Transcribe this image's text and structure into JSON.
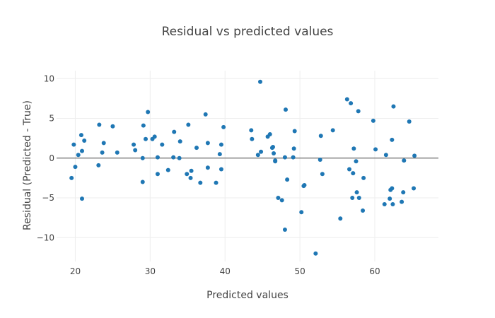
{
  "chart_data": {
    "type": "scatter",
    "title": "Residual vs predicted values",
    "xlabel": "Predicted values",
    "ylabel": "Residual (Predicted - True)",
    "xlim": [
      17.5,
      68.5
    ],
    "ylim": [
      -13.0,
      11.0
    ],
    "xticks": [
      20,
      30,
      40,
      50,
      60
    ],
    "xtick_labels": [
      "20",
      "30",
      "40",
      "50",
      "60"
    ],
    "yticks": [
      -10,
      -5,
      0,
      5,
      10
    ],
    "ytick_labels": [
      "−10",
      "−5",
      "0",
      "5",
      "10"
    ],
    "grid": true,
    "zero_line": true,
    "marker_color": "#1f77b4",
    "points": [
      [
        19.5,
        -2.5
      ],
      [
        19.8,
        1.7
      ],
      [
        20.0,
        -1.1
      ],
      [
        20.4,
        0.4
      ],
      [
        20.8,
        2.9
      ],
      [
        20.9,
        0.9
      ],
      [
        20.9,
        -5.1
      ],
      [
        21.2,
        2.2
      ],
      [
        23.1,
        -0.9
      ],
      [
        23.2,
        4.2
      ],
      [
        23.6,
        0.7
      ],
      [
        23.8,
        1.9
      ],
      [
        25.0,
        4.0
      ],
      [
        25.6,
        0.7
      ],
      [
        27.8,
        1.7
      ],
      [
        28.0,
        1.0
      ],
      [
        29.0,
        0.0
      ],
      [
        29.0,
        -3.0
      ],
      [
        29.1,
        4.1
      ],
      [
        29.4,
        2.4
      ],
      [
        29.7,
        5.8
      ],
      [
        30.3,
        2.4
      ],
      [
        30.6,
        2.7
      ],
      [
        31.0,
        0.1
      ],
      [
        31.0,
        -2.0
      ],
      [
        31.6,
        1.7
      ],
      [
        32.4,
        -1.5
      ],
      [
        33.1,
        0.1
      ],
      [
        33.2,
        3.3
      ],
      [
        33.9,
        0.0
      ],
      [
        34.0,
        2.1
      ],
      [
        34.9,
        -2.0
      ],
      [
        35.1,
        4.2
      ],
      [
        35.4,
        -2.5
      ],
      [
        35.5,
        -1.6
      ],
      [
        36.2,
        1.3
      ],
      [
        36.7,
        -3.1
      ],
      [
        37.4,
        5.5
      ],
      [
        37.7,
        1.9
      ],
      [
        37.7,
        -1.2
      ],
      [
        38.8,
        -3.1
      ],
      [
        39.3,
        0.5
      ],
      [
        39.5,
        -1.4
      ],
      [
        39.5,
        1.7
      ],
      [
        39.8,
        3.9
      ],
      [
        43.5,
        3.5
      ],
      [
        43.6,
        2.4
      ],
      [
        44.4,
        0.4
      ],
      [
        44.7,
        9.6
      ],
      [
        44.8,
        0.8
      ],
      [
        45.7,
        2.7
      ],
      [
        46.0,
        3.0
      ],
      [
        46.3,
        1.3
      ],
      [
        46.4,
        1.4
      ],
      [
        46.5,
        0.6
      ],
      [
        46.7,
        -0.4
      ],
      [
        46.7,
        -0.3
      ],
      [
        47.1,
        -5.0
      ],
      [
        47.6,
        -5.3
      ],
      [
        48.0,
        -9.0
      ],
      [
        48.0,
        0.1
      ],
      [
        48.1,
        6.1
      ],
      [
        48.3,
        -2.7
      ],
      [
        49.1,
        0.1
      ],
      [
        49.2,
        1.2
      ],
      [
        49.3,
        3.4
      ],
      [
        50.2,
        -6.8
      ],
      [
        50.5,
        -3.5
      ],
      [
        50.6,
        -3.4
      ],
      [
        52.1,
        -12.0
      ],
      [
        52.7,
        -0.2
      ],
      [
        52.8,
        2.8
      ],
      [
        53.0,
        -2.0
      ],
      [
        54.4,
        3.5
      ],
      [
        55.4,
        -7.6
      ],
      [
        56.3,
        7.4
      ],
      [
        56.6,
        -1.4
      ],
      [
        56.8,
        6.9
      ],
      [
        57.0,
        -5.0
      ],
      [
        57.1,
        -1.9
      ],
      [
        57.2,
        1.2
      ],
      [
        57.5,
        -0.4
      ],
      [
        57.6,
        -4.3
      ],
      [
        57.8,
        5.9
      ],
      [
        57.9,
        -5.0
      ],
      [
        58.4,
        -6.6
      ],
      [
        58.5,
        -2.5
      ],
      [
        59.8,
        4.7
      ],
      [
        60.1,
        1.1
      ],
      [
        61.3,
        -5.8
      ],
      [
        61.5,
        0.4
      ],
      [
        62.0,
        -5.1
      ],
      [
        62.1,
        -4.0
      ],
      [
        62.3,
        2.3
      ],
      [
        62.3,
        -3.8
      ],
      [
        62.4,
        -5.8
      ],
      [
        62.5,
        6.5
      ],
      [
        63.6,
        -5.5
      ],
      [
        63.8,
        -4.3
      ],
      [
        63.9,
        -0.3
      ],
      [
        64.6,
        4.6
      ],
      [
        65.2,
        -3.8
      ],
      [
        65.3,
        0.3
      ]
    ]
  }
}
